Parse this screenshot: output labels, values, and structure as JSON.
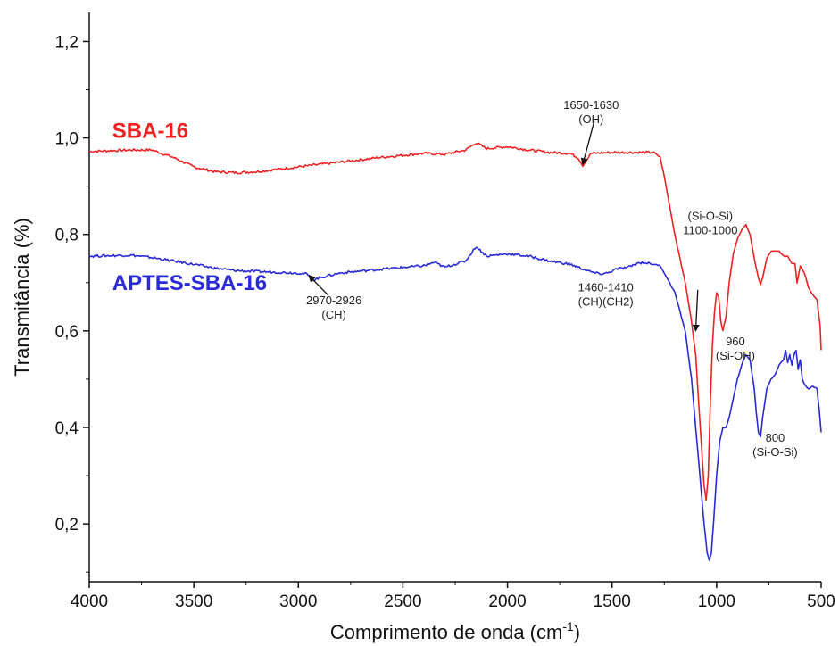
{
  "chart_data": {
    "type": "line",
    "xlabel": "Comprimento de onda (cm",
    "xlabel_sup": "-1",
    "xlabel_close": ")",
    "ylabel": "Transmitância (%)",
    "xlim": [
      4000,
      500
    ],
    "ylim": [
      0.08,
      1.26
    ],
    "x_reversed": true,
    "grid": false,
    "x_ticks": [
      4000,
      3500,
      3000,
      2500,
      2000,
      1500,
      1000,
      500
    ],
    "x_tick_labels": [
      "4000",
      "3500",
      "3000",
      "2500",
      "2000",
      "1500",
      "1000",
      "500"
    ],
    "y_ticks": [
      0.2,
      0.4,
      0.6,
      0.8,
      1.0,
      1.2
    ],
    "y_tick_labels": [
      "0,2",
      "0,4",
      "0,6",
      "0,8",
      "1,0",
      "1,2"
    ],
    "series": [
      {
        "name": "SBA-16",
        "color": "#ee2222",
        "points": [
          [
            4000,
            0.972
          ],
          [
            3800,
            0.975
          ],
          [
            3700,
            0.975
          ],
          [
            3600,
            0.96
          ],
          [
            3500,
            0.94
          ],
          [
            3400,
            0.93
          ],
          [
            3300,
            0.928
          ],
          [
            3200,
            0.93
          ],
          [
            3000,
            0.94
          ],
          [
            2800,
            0.95
          ],
          [
            2600,
            0.96
          ],
          [
            2400,
            0.968
          ],
          [
            2300,
            0.966
          ],
          [
            2200,
            0.975
          ],
          [
            2150,
            0.99
          ],
          [
            2100,
            0.978
          ],
          [
            2000,
            0.982
          ],
          [
            1900,
            0.975
          ],
          [
            1800,
            0.97
          ],
          [
            1700,
            0.968
          ],
          [
            1660,
            0.958
          ],
          [
            1640,
            0.943
          ],
          [
            1620,
            0.955
          ],
          [
            1600,
            0.968
          ],
          [
            1500,
            0.97
          ],
          [
            1400,
            0.97
          ],
          [
            1300,
            0.97
          ],
          [
            1270,
            0.96
          ],
          [
            1250,
            0.92
          ],
          [
            1200,
            0.8
          ],
          [
            1150,
            0.7
          ],
          [
            1120,
            0.62
          ],
          [
            1100,
            0.55
          ],
          [
            1090,
            0.48
          ],
          [
            1075,
            0.38
          ],
          [
            1060,
            0.28
          ],
          [
            1050,
            0.25
          ],
          [
            1040,
            0.3
          ],
          [
            1030,
            0.45
          ],
          [
            1020,
            0.57
          ],
          [
            1010,
            0.64
          ],
          [
            1000,
            0.68
          ],
          [
            990,
            0.67
          ],
          [
            980,
            0.62
          ],
          [
            970,
            0.6
          ],
          [
            955,
            0.63
          ],
          [
            940,
            0.7
          ],
          [
            920,
            0.76
          ],
          [
            900,
            0.79
          ],
          [
            880,
            0.81
          ],
          [
            860,
            0.82
          ],
          [
            840,
            0.8
          ],
          [
            820,
            0.75
          ],
          [
            800,
            0.71
          ],
          [
            790,
            0.695
          ],
          [
            780,
            0.71
          ],
          [
            760,
            0.75
          ],
          [
            740,
            0.765
          ],
          [
            700,
            0.765
          ],
          [
            680,
            0.755
          ],
          [
            660,
            0.755
          ],
          [
            640,
            0.74
          ],
          [
            625,
            0.74
          ],
          [
            615,
            0.7
          ],
          [
            600,
            0.735
          ],
          [
            580,
            0.72
          ],
          [
            560,
            0.69
          ],
          [
            540,
            0.675
          ],
          [
            520,
            0.665
          ],
          [
            505,
            0.61
          ],
          [
            500,
            0.56
          ]
        ]
      },
      {
        "name": "APTES-SBA-16",
        "color": "#2a2ad8",
        "points": [
          [
            4000,
            0.755
          ],
          [
            3800,
            0.757
          ],
          [
            3700,
            0.752
          ],
          [
            3600,
            0.745
          ],
          [
            3500,
            0.738
          ],
          [
            3400,
            0.73
          ],
          [
            3300,
            0.725
          ],
          [
            3200,
            0.723
          ],
          [
            3000,
            0.72
          ],
          [
            2960,
            0.718
          ],
          [
            2930,
            0.705
          ],
          [
            2900,
            0.71
          ],
          [
            2800,
            0.72
          ],
          [
            2600,
            0.728
          ],
          [
            2400,
            0.735
          ],
          [
            2350,
            0.742
          ],
          [
            2300,
            0.732
          ],
          [
            2200,
            0.745
          ],
          [
            2150,
            0.775
          ],
          [
            2100,
            0.755
          ],
          [
            2000,
            0.76
          ],
          [
            1900,
            0.755
          ],
          [
            1800,
            0.745
          ],
          [
            1700,
            0.738
          ],
          [
            1650,
            0.73
          ],
          [
            1600,
            0.722
          ],
          [
            1560,
            0.718
          ],
          [
            1520,
            0.72
          ],
          [
            1480,
            0.728
          ],
          [
            1420,
            0.732
          ],
          [
            1380,
            0.74
          ],
          [
            1350,
            0.742
          ],
          [
            1300,
            0.738
          ],
          [
            1270,
            0.735
          ],
          [
            1250,
            0.72
          ],
          [
            1200,
            0.68
          ],
          [
            1150,
            0.6
          ],
          [
            1120,
            0.5
          ],
          [
            1100,
            0.4
          ],
          [
            1080,
            0.3
          ],
          [
            1060,
            0.2
          ],
          [
            1045,
            0.14
          ],
          [
            1035,
            0.125
          ],
          [
            1025,
            0.14
          ],
          [
            1015,
            0.2
          ],
          [
            1000,
            0.3
          ],
          [
            985,
            0.37
          ],
          [
            970,
            0.4
          ],
          [
            955,
            0.4
          ],
          [
            940,
            0.42
          ],
          [
            920,
            0.46
          ],
          [
            900,
            0.5
          ],
          [
            880,
            0.53
          ],
          [
            860,
            0.55
          ],
          [
            840,
            0.54
          ],
          [
            820,
            0.48
          ],
          [
            810,
            0.43
          ],
          [
            800,
            0.39
          ],
          [
            790,
            0.38
          ],
          [
            780,
            0.42
          ],
          [
            760,
            0.48
          ],
          [
            740,
            0.5
          ],
          [
            720,
            0.51
          ],
          [
            700,
            0.53
          ],
          [
            680,
            0.54
          ],
          [
            670,
            0.56
          ],
          [
            660,
            0.535
          ],
          [
            650,
            0.55
          ],
          [
            640,
            0.53
          ],
          [
            630,
            0.55
          ],
          [
            620,
            0.56
          ],
          [
            610,
            0.52
          ],
          [
            600,
            0.54
          ],
          [
            590,
            0.5
          ],
          [
            580,
            0.49
          ],
          [
            560,
            0.48
          ],
          [
            540,
            0.485
          ],
          [
            520,
            0.48
          ],
          [
            510,
            0.44
          ],
          [
            500,
            0.39
          ]
        ]
      }
    ],
    "series_labels": [
      {
        "text": "SBA-16",
        "color": "#ee2222",
        "x": 3890,
        "y": 1.0
      },
      {
        "text": "APTES-SBA-16",
        "color": "#2a2ad8",
        "x": 3890,
        "y": 0.685
      }
    ],
    "annotations": [
      {
        "line1": "1650-1630",
        "line2": "(OH)",
        "x": 1600,
        "y": 1.06,
        "arrow_to": [
          1640,
          0.945
        ],
        "arrow_from": [
          1585,
          1.035
        ]
      },
      {
        "line1": "(Si-O-Si)",
        "line2": "1100-1000",
        "x": 1030,
        "y": 0.83,
        "arrow_to": [
          1100,
          0.6
        ],
        "arrow_from": [
          1090,
          0.685
        ]
      },
      {
        "line1": "2970-2926",
        "line2": "(CH)",
        "x": 2830,
        "y": 0.655,
        "arrow_to": [
          2950,
          0.715
        ],
        "arrow_from": [
          2860,
          0.675
        ]
      },
      {
        "line1": "1460-1410",
        "line2": "(CH)(CH2)",
        "x": 1530,
        "y": 0.682,
        "arrow_to": null,
        "arrow_from": null
      },
      {
        "line1": "960",
        "line2": "(Si-OH)",
        "x": 910,
        "y": 0.57,
        "arrow_to": null,
        "arrow_from": null
      },
      {
        "line1": "800",
        "line2": "(Si-O-Si)",
        "x": 720,
        "y": 0.37,
        "arrow_to": null,
        "arrow_from": null
      }
    ]
  }
}
